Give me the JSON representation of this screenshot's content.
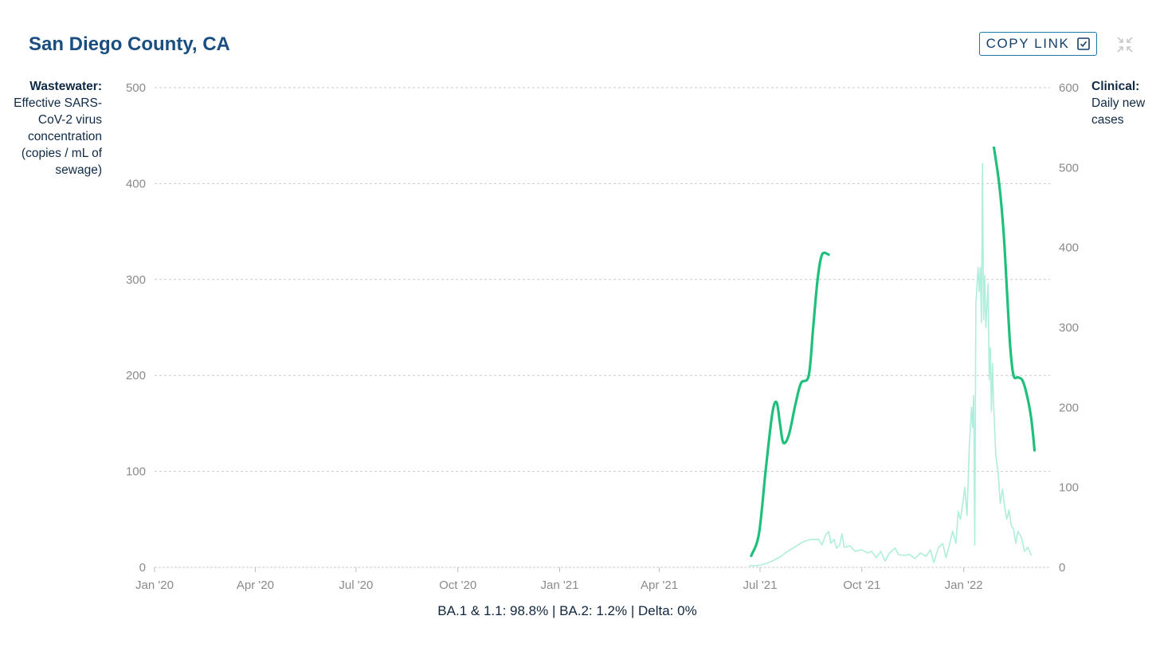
{
  "header": {
    "title": "San Diego County, CA",
    "copy_link_label": "COPY LINK",
    "copy_icon": "checkbox-icon",
    "collapse_icon": "collapse-icon"
  },
  "axes": {
    "left_title_bold": "Wastewater:",
    "left_title_rest": "Effective SARS-CoV-2 virus concentration (copies / mL of sewage)",
    "right_title_bold": "Clinical:",
    "right_title_rest": "Daily new cases"
  },
  "footer": {
    "variants": "BA.1 & 1.1: 98.8% | BA.2: 1.2% | Delta: 0%"
  },
  "colors": {
    "title": "#1a4d80",
    "button_border": "#1b79a8",
    "wastewater": "#1fbf7c",
    "clinical": "#aeeedb",
    "grid": "#c9c9c9",
    "tick_text": "#8a8a8a"
  },
  "chart_data": {
    "type": "line",
    "x_axis": {
      "ticks": [
        "2020-01-01",
        "2020-04-01",
        "2020-07-01",
        "2020-10-01",
        "2021-01-01",
        "2021-04-01",
        "2021-07-01",
        "2021-10-01",
        "2022-01-01"
      ],
      "tick_labels": [
        "Jan '20",
        "Apr '20",
        "Jul '20",
        "Oct '20",
        "Jan '21",
        "Apr '21",
        "Jul '21",
        "Oct '21",
        "Jan '22"
      ],
      "range": [
        "2020-01-01",
        "2022-03-20"
      ]
    },
    "y_left": {
      "ticks": [
        0,
        100,
        200,
        300,
        400,
        500
      ],
      "range": [
        0,
        500
      ]
    },
    "y_right": {
      "ticks": [
        0,
        100,
        200,
        300,
        400,
        500,
        600
      ],
      "range": [
        0,
        600
      ]
    },
    "grid": true,
    "series": [
      {
        "axis": "left",
        "segments": [
          [
            [
              "2021-06-23",
              12
            ],
            [
              "2021-06-30",
              35
            ],
            [
              "2021-07-06",
              100
            ],
            [
              "2021-07-12",
              160
            ],
            [
              "2021-07-16",
              172
            ],
            [
              "2021-07-19",
              150
            ],
            [
              "2021-07-22",
              130
            ],
            [
              "2021-07-27",
              138
            ],
            [
              "2021-08-02",
              170
            ],
            [
              "2021-08-07",
              192
            ],
            [
              "2021-08-14",
              200
            ],
            [
              "2021-08-18",
              250
            ],
            [
              "2021-08-22",
              300
            ],
            [
              "2021-08-26",
              326
            ],
            [
              "2021-09-01",
              326
            ]
          ],
          [
            [
              "2022-01-28",
              440
            ],
            [
              "2022-02-02",
              400
            ],
            [
              "2022-02-06",
              350
            ],
            [
              "2022-02-09",
              290
            ],
            [
              "2022-02-12",
              230
            ],
            [
              "2022-02-15",
              200
            ],
            [
              "2022-02-19",
              198
            ],
            [
              "2022-02-23",
              195
            ],
            [
              "2022-02-27",
              180
            ],
            [
              "2022-03-03",
              155
            ],
            [
              "2022-03-06",
              122
            ]
          ]
        ]
      },
      {
        "axis": "right",
        "points": [
          [
            "2021-06-21",
            2
          ],
          [
            "2021-06-28",
            2
          ],
          [
            "2021-07-05",
            4
          ],
          [
            "2021-07-12",
            8
          ],
          [
            "2021-07-19",
            13
          ],
          [
            "2021-07-26",
            20
          ],
          [
            "2021-08-02",
            26
          ],
          [
            "2021-08-09",
            32
          ],
          [
            "2021-08-16",
            35
          ],
          [
            "2021-08-23",
            35
          ],
          [
            "2021-08-26",
            28
          ],
          [
            "2021-08-29",
            40
          ],
          [
            "2021-09-01",
            45
          ],
          [
            "2021-09-03",
            30
          ],
          [
            "2021-09-06",
            35
          ],
          [
            "2021-09-08",
            24
          ],
          [
            "2021-09-11",
            28
          ],
          [
            "2021-09-13",
            42
          ],
          [
            "2021-09-15",
            25
          ],
          [
            "2021-09-20",
            27
          ],
          [
            "2021-09-25",
            20
          ],
          [
            "2021-10-01",
            22
          ],
          [
            "2021-10-06",
            18
          ],
          [
            "2021-10-10",
            20
          ],
          [
            "2021-10-14",
            12
          ],
          [
            "2021-10-18",
            20
          ],
          [
            "2021-10-22",
            8
          ],
          [
            "2021-10-26",
            18
          ],
          [
            "2021-10-31",
            24
          ],
          [
            "2021-11-03",
            16
          ],
          [
            "2021-11-08",
            15
          ],
          [
            "2021-11-13",
            16
          ],
          [
            "2021-11-18",
            11
          ],
          [
            "2021-11-23",
            18
          ],
          [
            "2021-11-28",
            14
          ],
          [
            "2021-12-02",
            22
          ],
          [
            "2021-12-05",
            6
          ],
          [
            "2021-12-09",
            24
          ],
          [
            "2021-12-13",
            30
          ],
          [
            "2021-12-16",
            12
          ],
          [
            "2021-12-19",
            28
          ],
          [
            "2021-12-22",
            45
          ],
          [
            "2021-12-25",
            30
          ],
          [
            "2021-12-27",
            70
          ],
          [
            "2021-12-29",
            60
          ],
          [
            "2021-12-31",
            78
          ],
          [
            "2022-01-02",
            100
          ],
          [
            "2022-01-04",
            65
          ],
          [
            "2022-01-06",
            150
          ],
          [
            "2022-01-08",
            200
          ],
          [
            "2022-01-09",
            175
          ],
          [
            "2022-01-10",
            215
          ],
          [
            "2022-01-11",
            28
          ],
          [
            "2022-01-12",
            330
          ],
          [
            "2022-01-14",
            375
          ],
          [
            "2022-01-15",
            345
          ],
          [
            "2022-01-16",
            375
          ],
          [
            "2022-01-17",
            306
          ],
          [
            "2022-01-18",
            505
          ],
          [
            "2022-01-19",
            310
          ],
          [
            "2022-01-20",
            365
          ],
          [
            "2022-01-21",
            300
          ],
          [
            "2022-01-23",
            355
          ],
          [
            "2022-01-24",
            235
          ],
          [
            "2022-01-25",
            275
          ],
          [
            "2022-01-26",
            195
          ],
          [
            "2022-01-27",
            255
          ],
          [
            "2022-01-28",
            205
          ],
          [
            "2022-01-30",
            140
          ],
          [
            "2022-02-01",
            120
          ],
          [
            "2022-02-03",
            80
          ],
          [
            "2022-02-05",
            98
          ],
          [
            "2022-02-07",
            75
          ],
          [
            "2022-02-09",
            60
          ],
          [
            "2022-02-11",
            72
          ],
          [
            "2022-02-13",
            52
          ],
          [
            "2022-02-15",
            48
          ],
          [
            "2022-02-17",
            30
          ],
          [
            "2022-02-19",
            45
          ],
          [
            "2022-02-22",
            38
          ],
          [
            "2022-02-25",
            20
          ],
          [
            "2022-02-28",
            25
          ],
          [
            "2022-03-03",
            15
          ]
        ]
      }
    ]
  }
}
